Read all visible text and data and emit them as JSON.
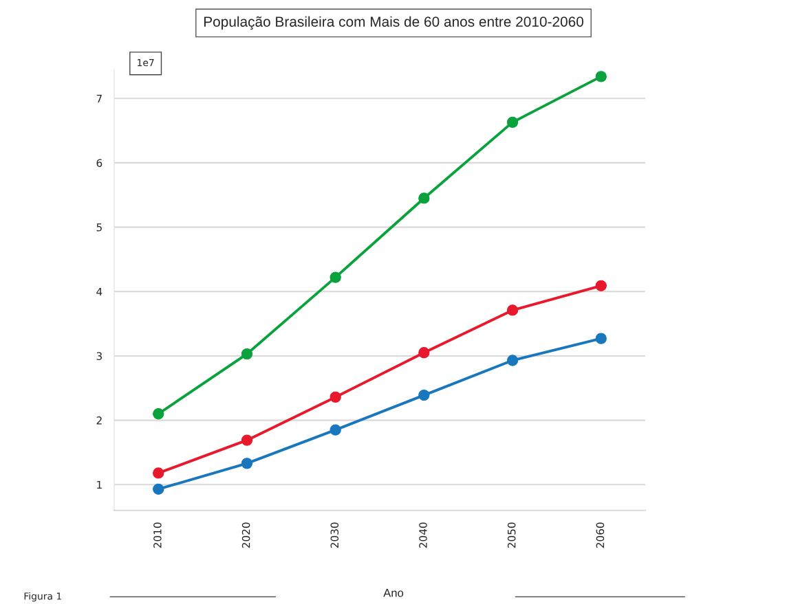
{
  "chart_data": {
    "type": "line",
    "title": "População Brasileira com Mais de 60 anos entre 2010-2060",
    "xlabel": "Ano",
    "categories": [
      "2010",
      "2020",
      "2030",
      "2040",
      "2050",
      "2060"
    ],
    "series": [
      {
        "color": "#0aa23c",
        "values": [
          2.1,
          3.03,
          4.22,
          5.45,
          6.63,
          7.34
        ]
      },
      {
        "color": "#e8192c",
        "values": [
          1.18,
          1.69,
          2.36,
          3.05,
          3.71,
          4.09
        ]
      },
      {
        "color": "#1877bd",
        "values": [
          0.93,
          1.33,
          1.85,
          2.39,
          2.93,
          3.27
        ]
      }
    ],
    "ylim": [
      0.6,
      7.45
    ],
    "yticks": [
      1,
      2,
      3,
      4,
      5,
      6,
      7
    ],
    "grid": "y",
    "marker": "circle",
    "line_style": "solid",
    "annotations": [
      "1e7",
      "Figura 1"
    ]
  }
}
